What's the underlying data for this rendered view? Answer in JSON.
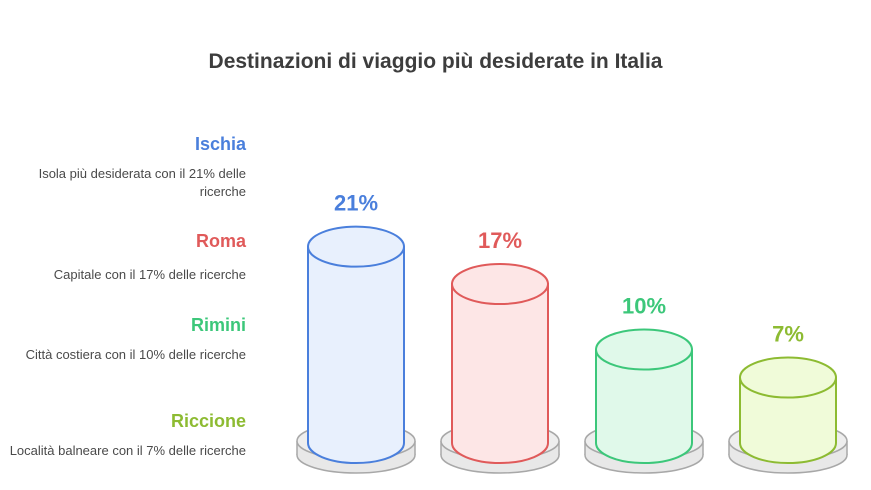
{
  "chart_data": {
    "type": "bar",
    "title": "Destinazioni di viaggio più desiderate in Italia",
    "categories": [
      "Ischia",
      "Roma",
      "Rimini",
      "Riccione"
    ],
    "values": [
      21,
      17,
      10,
      7
    ],
    "value_labels": [
      "21%",
      "17%",
      "10%",
      "7%"
    ],
    "descriptions": [
      "Isola più desiderata con il 21% delle ricerche",
      "Capitale con il 17% delle ricerche",
      "Città costiera con il 10% delle ricerche",
      "Località balneare con il 7% delle ricerche"
    ],
    "colors": {
      "stroke": [
        "#4a7fdc",
        "#e05a5a",
        "#3cc77a",
        "#8dbb32"
      ],
      "fill": [
        "#e8f0fd",
        "#fde6e6",
        "#e0f9ea",
        "#f0fbd9"
      ],
      "label": [
        "#4a7fdc",
        "#e05a5a",
        "#3cc77a",
        "#8dbb32"
      ]
    }
  }
}
